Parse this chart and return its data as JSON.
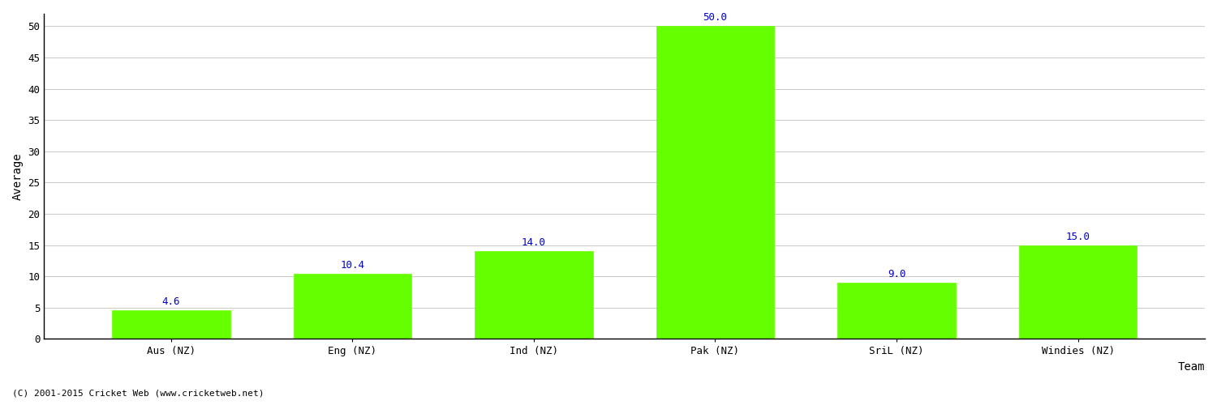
{
  "categories": [
    "Aus (NZ)",
    "Eng (NZ)",
    "Ind (NZ)",
    "Pak (NZ)",
    "SriL (NZ)",
    "Windies (NZ)"
  ],
  "values": [
    4.6,
    10.4,
    14.0,
    50.0,
    9.0,
    15.0
  ],
  "bar_color": "#66ff00",
  "bar_edge_color": "#66ff00",
  "xlabel": "Team",
  "ylabel": "Average",
  "ylim": [
    0,
    52
  ],
  "yticks": [
    0,
    5,
    10,
    15,
    20,
    25,
    30,
    35,
    40,
    45,
    50
  ],
  "label_color": "#0000cc",
  "label_fontsize": 9,
  "axis_label_fontsize": 10,
  "tick_fontsize": 9,
  "background_color": "#ffffff",
  "grid_color": "#cccccc",
  "footer_text": "(C) 2001-2015 Cricket Web (www.cricketweb.net)",
  "footer_fontsize": 8,
  "bar_width": 0.65
}
